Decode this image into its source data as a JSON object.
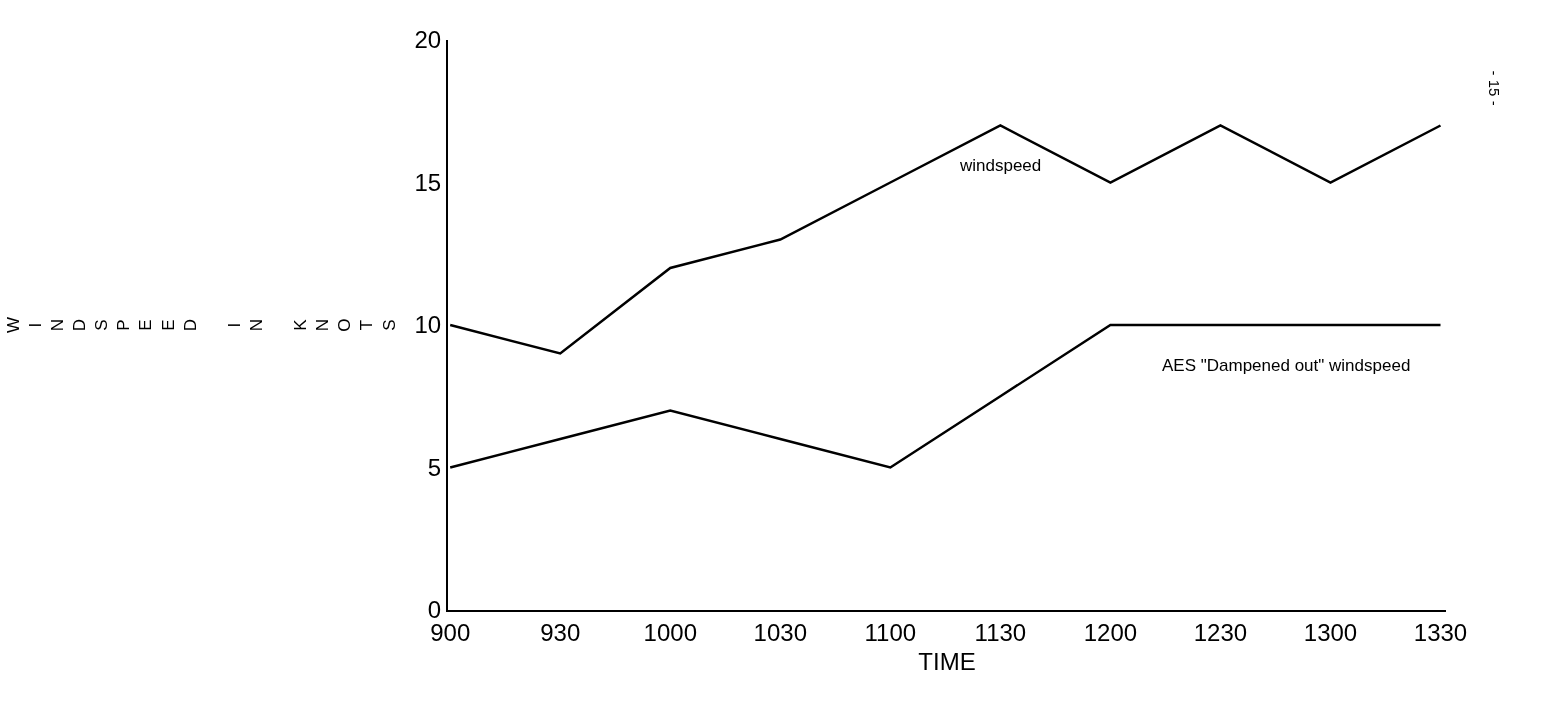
{
  "chart_data": {
    "type": "line",
    "xlabel": "TIME",
    "ylabel": "WINDSPEED IN KNOTS",
    "categories": [
      "900",
      "930",
      "1000",
      "1030",
      "1100",
      "1130",
      "1200",
      "1230",
      "1300",
      "1330"
    ],
    "series": [
      {
        "name": "windspeed",
        "color": "#000000",
        "values": [
          10,
          9,
          12,
          13,
          15,
          17,
          15,
          17,
          15,
          17
        ]
      },
      {
        "name": "AES \"Dampened out\" windspeed",
        "color": "#000000",
        "values": [
          5,
          6,
          7,
          6,
          5,
          7.5,
          10,
          10,
          10,
          10
        ]
      }
    ],
    "annotations": [
      "- 15 -"
    ],
    "ylim": [
      0,
      20
    ],
    "yticks": [
      0,
      5,
      10,
      15,
      20
    ],
    "legend": false,
    "marker": "none",
    "line_style": "solid"
  }
}
